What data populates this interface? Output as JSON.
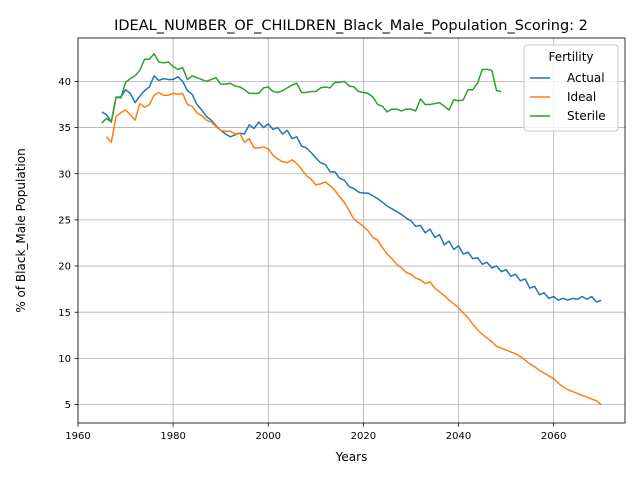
{
  "chart_data": {
    "type": "line",
    "title": "IDEAL_NUMBER_OF_CHILDREN_Black_Male_Population_Scoring: 2",
    "xlabel": "Years",
    "ylabel": "% of Black_Male Population",
    "xlim": [
      1960,
      2075
    ],
    "ylim": [
      3.0,
      44.7
    ],
    "xticks": [
      1960,
      1980,
      2000,
      2020,
      2040,
      2060
    ],
    "yticks": [
      5,
      10,
      15,
      20,
      25,
      30,
      35,
      40
    ],
    "grid": true,
    "legend": {
      "title": "Fertility",
      "position": "upper right"
    },
    "series": [
      {
        "name": "Actual",
        "color": "#1f77b4",
        "x": [
          1965,
          1966,
          1967,
          1968,
          1969,
          1970,
          1971,
          1972,
          1973,
          1974,
          1975,
          1976,
          1977,
          1978,
          1979,
          1980,
          1981,
          1982,
          1983,
          1984,
          1985,
          1986,
          1987,
          1988,
          1989,
          1990,
          1991,
          1992,
          1993,
          1994,
          1995,
          1996,
          1997,
          1998,
          1999,
          2000,
          2001,
          2002,
          2003,
          2004,
          2005,
          2006,
          2007,
          2008,
          2009,
          2010,
          2011,
          2012,
          2013,
          2014,
          2015,
          2016,
          2017,
          2018,
          2019,
          2020,
          2021,
          2022,
          2023,
          2024,
          2025,
          2026,
          2027,
          2028,
          2029,
          2030,
          2031,
          2032,
          2033,
          2034,
          2035,
          2036,
          2037,
          2038,
          2039,
          2040,
          2041,
          2042,
          2043,
          2044,
          2045,
          2046,
          2047,
          2048,
          2049,
          2050,
          2051,
          2052,
          2053,
          2054,
          2055,
          2056,
          2057,
          2058,
          2059,
          2060,
          2061,
          2062,
          2063,
          2064,
          2065,
          2066,
          2067,
          2068,
          2069,
          2070
        ],
        "values": [
          36.7,
          36.4,
          35.6,
          38.3,
          38.3,
          39.1,
          38.7,
          37.7,
          38.4,
          39.0,
          39.4,
          40.6,
          40.1,
          40.3,
          40.2,
          40.2,
          40.5,
          40.0,
          39.0,
          38.6,
          37.5,
          36.9,
          36.2,
          35.8,
          35.2,
          34.7,
          34.3,
          34.0,
          34.2,
          34.4,
          34.3,
          35.3,
          34.9,
          35.6,
          35.0,
          35.4,
          34.8,
          35.0,
          34.3,
          34.7,
          33.8,
          34.0,
          33.0,
          32.8,
          32.3,
          31.7,
          31.2,
          31.0,
          30.2,
          30.2,
          29.5,
          29.3,
          28.6,
          28.4,
          28.0,
          27.9,
          27.9,
          27.6,
          27.3,
          26.9,
          26.5,
          26.2,
          25.9,
          25.6,
          25.2,
          24.9,
          24.3,
          24.4,
          23.6,
          24.0,
          23.1,
          23.4,
          22.3,
          22.7,
          21.8,
          22.2,
          21.3,
          21.5,
          20.8,
          20.9,
          20.2,
          20.4,
          19.8,
          20.0,
          19.4,
          19.6,
          18.9,
          19.1,
          18.4,
          18.6,
          17.6,
          17.8,
          16.9,
          17.1,
          16.5,
          16.7,
          16.3,
          16.5,
          16.3,
          16.5,
          16.4,
          16.7,
          16.4,
          16.7,
          16.1,
          16.3
        ]
      },
      {
        "name": "Ideal",
        "color": "#ff7f0e",
        "x": [
          1966,
          1967,
          1968,
          1969,
          1970,
          1971,
          1972,
          1973,
          1974,
          1975,
          1976,
          1977,
          1978,
          1979,
          1980,
          1981,
          1982,
          1983,
          1984,
          1985,
          1986,
          1987,
          1988,
          1989,
          1990,
          1991,
          1992,
          1993,
          1994,
          1995,
          1996,
          1997,
          1998,
          1999,
          2000,
          2001,
          2002,
          2003,
          2004,
          2005,
          2006,
          2007,
          2008,
          2009,
          2010,
          2011,
          2012,
          2013,
          2014,
          2015,
          2016,
          2017,
          2018,
          2019,
          2020,
          2021,
          2022,
          2023,
          2024,
          2025,
          2026,
          2027,
          2028,
          2029,
          2030,
          2031,
          2032,
          2033,
          2034,
          2035,
          2036,
          2037,
          2038,
          2039,
          2040,
          2041,
          2042,
          2043,
          2044,
          2045,
          2046,
          2047,
          2048,
          2049,
          2050,
          2051,
          2052,
          2053,
          2054,
          2055,
          2056,
          2057,
          2058,
          2059,
          2060,
          2061,
          2062,
          2063,
          2064,
          2065,
          2066,
          2067,
          2068,
          2069,
          2070
        ],
        "values": [
          34.0,
          33.4,
          36.2,
          36.6,
          36.9,
          36.4,
          35.8,
          37.6,
          37.2,
          37.5,
          38.5,
          38.8,
          38.5,
          38.5,
          38.7,
          38.6,
          38.7,
          37.5,
          37.3,
          36.6,
          36.3,
          35.8,
          35.6,
          35.1,
          34.7,
          34.6,
          34.6,
          34.3,
          34.4,
          33.4,
          33.8,
          32.8,
          32.8,
          32.9,
          32.7,
          32.0,
          31.6,
          31.3,
          31.2,
          31.5,
          31.1,
          30.5,
          29.8,
          29.4,
          28.8,
          28.9,
          29.1,
          28.7,
          28.2,
          27.5,
          26.9,
          26.0,
          25.1,
          24.7,
          24.3,
          23.8,
          23.1,
          22.8,
          22.0,
          21.3,
          20.8,
          20.2,
          19.8,
          19.3,
          19.1,
          18.7,
          18.5,
          18.1,
          18.3,
          17.6,
          17.2,
          16.8,
          16.3,
          15.9,
          15.5,
          14.9,
          14.4,
          13.7,
          13.1,
          12.6,
          12.2,
          11.8,
          11.3,
          11.1,
          10.9,
          10.7,
          10.5,
          10.2,
          9.8,
          9.4,
          9.1,
          8.7,
          8.4,
          8.1,
          7.8,
          7.3,
          6.9,
          6.6,
          6.4,
          6.2,
          6.0,
          5.8,
          5.6,
          5.4,
          5.0
        ]
      },
      {
        "name": "Sterile",
        "color": "#2ca02c",
        "x": [
          1965,
          1966,
          1967,
          1968,
          1969,
          1970,
          1971,
          1972,
          1973,
          1974,
          1975,
          1976,
          1977,
          1978,
          1979,
          1980,
          1981,
          1982,
          1983,
          1984,
          1985,
          1986,
          1987,
          1988,
          1989,
          1990,
          1991,
          1992,
          1993,
          1994,
          1995,
          1996,
          1997,
          1998,
          1999,
          2000,
          2001,
          2002,
          2003,
          2004,
          2005,
          2006,
          2007,
          2008,
          2009,
          2010,
          2011,
          2012,
          2013,
          2014,
          2015,
          2016,
          2017,
          2018,
          2019,
          2020,
          2021,
          2022,
          2023,
          2024,
          2025,
          2026,
          2027,
          2028,
          2029,
          2030,
          2031,
          2032,
          2033,
          2034,
          2035,
          2036,
          2037,
          2038,
          2039,
          2040,
          2041,
          2042,
          2043,
          2044,
          2045,
          2046,
          2047,
          2048,
          2049
        ],
        "values": [
          35.5,
          36.0,
          35.6,
          38.3,
          38.2,
          39.9,
          40.3,
          40.6,
          41.2,
          42.4,
          42.4,
          43.0,
          42.1,
          42.0,
          42.1,
          41.6,
          41.3,
          41.5,
          40.2,
          40.6,
          40.4,
          40.2,
          40.0,
          40.2,
          40.4,
          39.7,
          39.7,
          39.8,
          39.5,
          39.4,
          39.1,
          38.7,
          38.7,
          38.7,
          39.3,
          39.4,
          38.9,
          38.8,
          39.0,
          39.3,
          39.6,
          39.8,
          38.8,
          38.8,
          38.9,
          38.9,
          39.3,
          39.4,
          39.3,
          39.9,
          39.9,
          40.0,
          39.5,
          39.4,
          38.9,
          38.8,
          38.7,
          38.3,
          37.5,
          37.3,
          36.7,
          37.0,
          37.0,
          36.8,
          37.0,
          37.0,
          36.8,
          38.1,
          37.5,
          37.5,
          37.6,
          37.7,
          37.3,
          36.9,
          38.0,
          37.9,
          38.0,
          39.1,
          39.1,
          39.8,
          41.3,
          41.3,
          41.2,
          39.0,
          38.9
        ]
      }
    ]
  }
}
